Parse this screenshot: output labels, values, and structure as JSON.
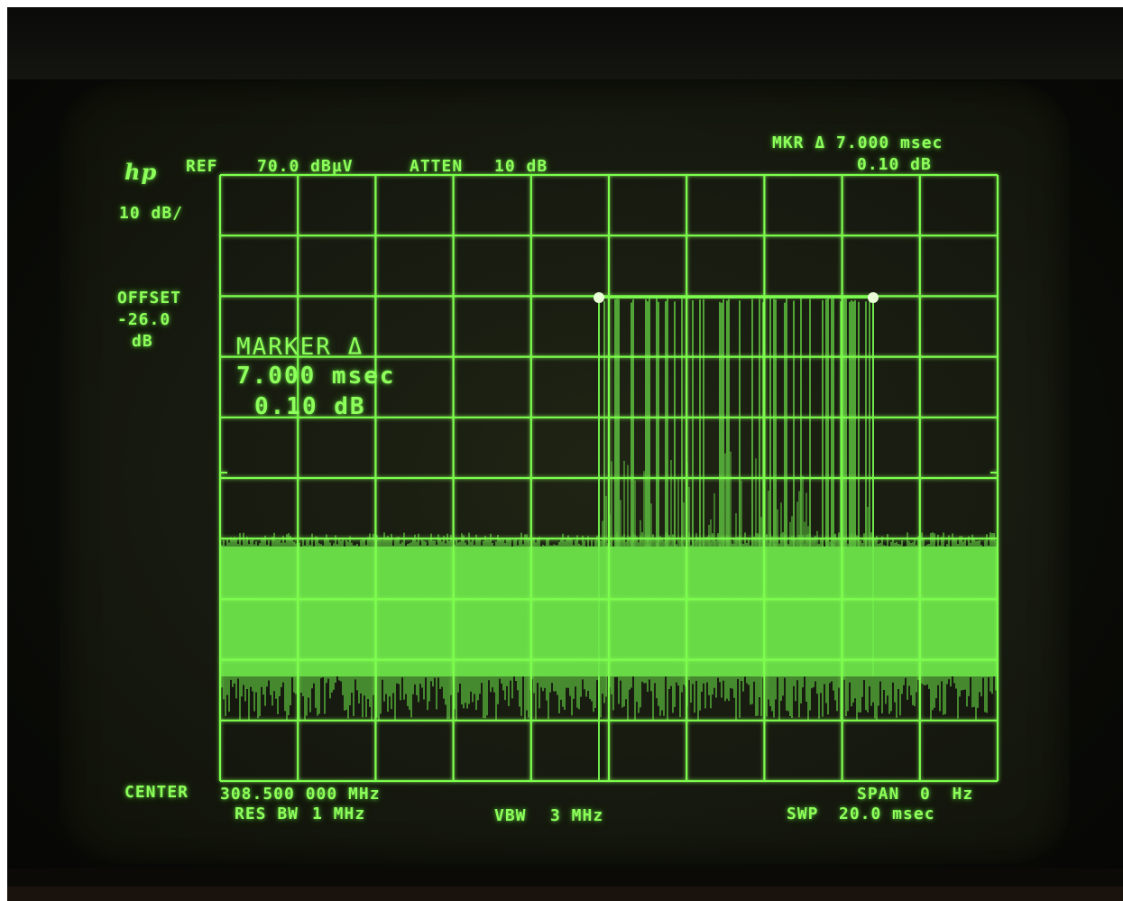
{
  "header": {
    "logo": "hp",
    "ref_label": "REF",
    "ref_value": "70.0 dBµV",
    "atten_label": "ATTEN",
    "atten_value": "10 dB",
    "scale": "10 dB/"
  },
  "marker_readout": {
    "mkr_line": "MKR Δ 7.000 msec",
    "mkr_db": "0.10 dB"
  },
  "offset": {
    "label": "OFFSET",
    "value": "-26.0",
    "unit": "dB"
  },
  "marker_box": {
    "title": "MARKER Δ",
    "time": "7.000 msec",
    "db": "0.10 dB"
  },
  "footer": {
    "center_label": "CENTER",
    "center_value": "308.500 000 MHz",
    "span_label": "SPAN",
    "span_value": "0  Hz",
    "res_bw_label": "RES BW",
    "res_bw_value": "1 MHz",
    "vbw_label": "VBW",
    "vbw_value": "3 MHz",
    "swp_label": "SWP",
    "swp_value": "20.0 msec"
  },
  "colors": {
    "phosphor": "#8dff5a",
    "trace_fill": "#6ee84a",
    "grid": "#7dff4d",
    "background": "#141a0f"
  }
}
